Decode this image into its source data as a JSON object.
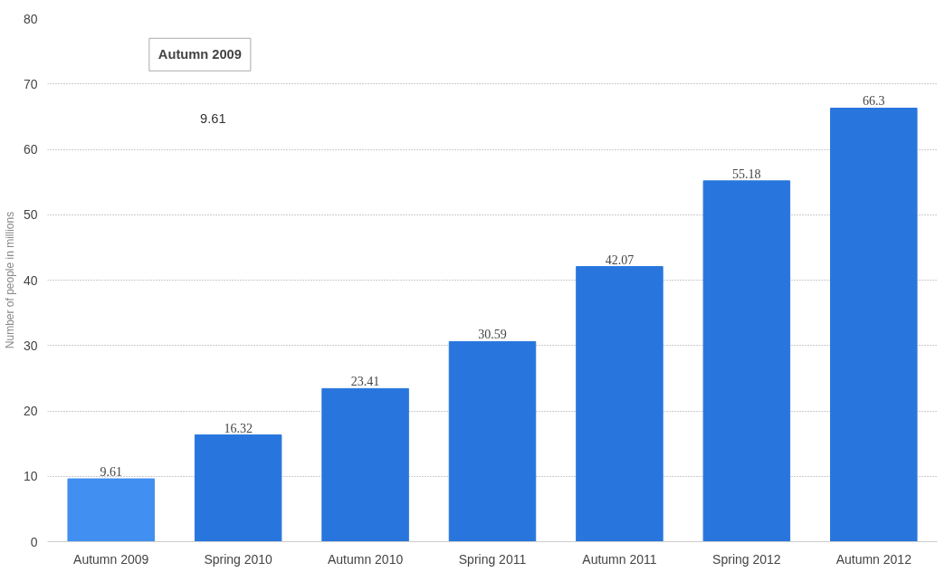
{
  "chart_data": {
    "type": "bar",
    "ylabel": "Number of people in millions",
    "categories": [
      "Autumn 2009",
      "Spring 2010",
      "Autumn 2010",
      "Spring 2011",
      "Autumn 2011",
      "Spring 2012",
      "Autumn 2012"
    ],
    "values": [
      9.61,
      16.32,
      23.41,
      30.59,
      42.07,
      55.18,
      66.3
    ],
    "colors": [
      "#418ff0",
      "#2876dd",
      "#2876dd",
      "#2876dd",
      "#2876dd",
      "#2876dd",
      "#2876dd"
    ],
    "ylim": [
      0,
      80
    ],
    "yticks": [
      0,
      10,
      20,
      30,
      40,
      50,
      60,
      70,
      80
    ],
    "grid": "y",
    "data_labels": true,
    "annotations": [
      "Autumn 2009",
      "9.61"
    ]
  }
}
